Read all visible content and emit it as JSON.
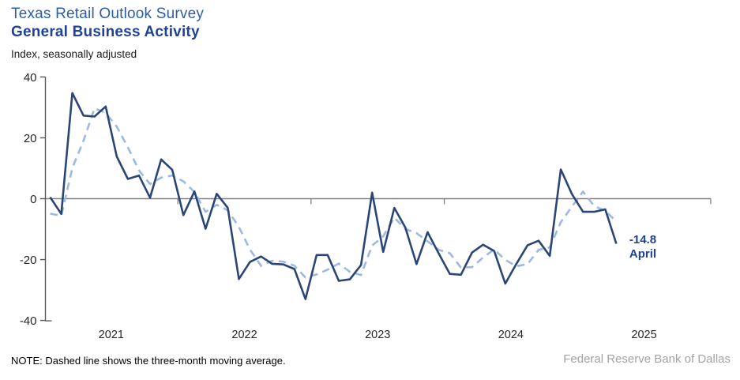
{
  "header": {
    "title": "Texas Retail Outlook Survey",
    "subtitle": "General Business Activity",
    "index_label": "Index, seasonally adjusted"
  },
  "annotation": {
    "value": "-14.8",
    "month": "April"
  },
  "footer": {
    "note": "NOTE: Dashed line shows the three-month moving average.",
    "source": "Federal Reserve Bank of Dallas"
  },
  "colors": {
    "title_blue": "#2d5da7",
    "title_dark_blue": "#1e4296",
    "solid_line": "#2a4677",
    "dashed_line": "#9db9e2",
    "zero_line": "#808080",
    "axis": "#595959",
    "tick_label": "#262626",
    "source_gray": "#a3a3a3"
  },
  "chart_data": {
    "type": "line",
    "title": "Texas Retail Outlook Survey — General Business Activity",
    "ylabel": "Index, seasonally adjusted",
    "ylim": [
      -40,
      40
    ],
    "y_ticks": [
      40,
      20,
      0,
      -20,
      -40
    ],
    "x_year_labels": [
      "2021",
      "2022",
      "2023",
      "2024",
      "2025"
    ],
    "start_month": "2021-01",
    "end_month": "2025-04",
    "frequency": "monthly",
    "grid": "zero line only, year-boundary ticks on zero line",
    "legend_position": "none (dashed explained in note)",
    "last_point_label": "-14.8 April",
    "series": [
      {
        "name": "General Business Activity index (monthly)",
        "style": "solid",
        "color": "#2a4677",
        "values": [
          0.5,
          -5.0,
          34.7,
          27.3,
          27.0,
          30.3,
          13.9,
          6.5,
          7.6,
          0.3,
          12.9,
          9.5,
          -5.4,
          2.4,
          -9.9,
          1.6,
          -3.0,
          -26.4,
          -20.8,
          -19.0,
          -21.4,
          -21.6,
          -23.1,
          -33.0,
          -18.5,
          -18.5,
          -27.0,
          -26.5,
          -21.8,
          2.0,
          -17.5,
          -3.0,
          -9.5,
          -21.5,
          -11.0,
          -18.0,
          -24.7,
          -25.0,
          -17.7,
          -15.1,
          -17.2,
          -27.9,
          -21.4,
          -15.3,
          -13.8,
          -18.8,
          9.6,
          1.5,
          -4.3,
          -4.3,
          -3.5,
          -14.8
        ]
      },
      {
        "name": "Three-month moving average",
        "style": "dashed",
        "color": "#9db9e2",
        "values": [
          -4.9,
          -5.6,
          10.1,
          19.0,
          29.7,
          28.2,
          23.7,
          16.9,
          9.3,
          4.8,
          6.9,
          7.6,
          5.7,
          2.2,
          -4.3,
          -2.0,
          -3.8,
          -9.3,
          -16.7,
          -22.1,
          -20.4,
          -20.7,
          -22.0,
          -25.9,
          -24.9,
          -23.3,
          -21.3,
          -24.0,
          -25.1,
          -15.4,
          -12.4,
          -6.2,
          -10.0,
          -11.3,
          -14.0,
          -16.8,
          -17.9,
          -22.6,
          -22.5,
          -19.3,
          -16.7,
          -20.1,
          -22.2,
          -21.5,
          -16.8,
          -16.0,
          -7.7,
          -2.6,
          2.3,
          -2.4,
          -4.0,
          -7.5
        ]
      }
    ]
  }
}
